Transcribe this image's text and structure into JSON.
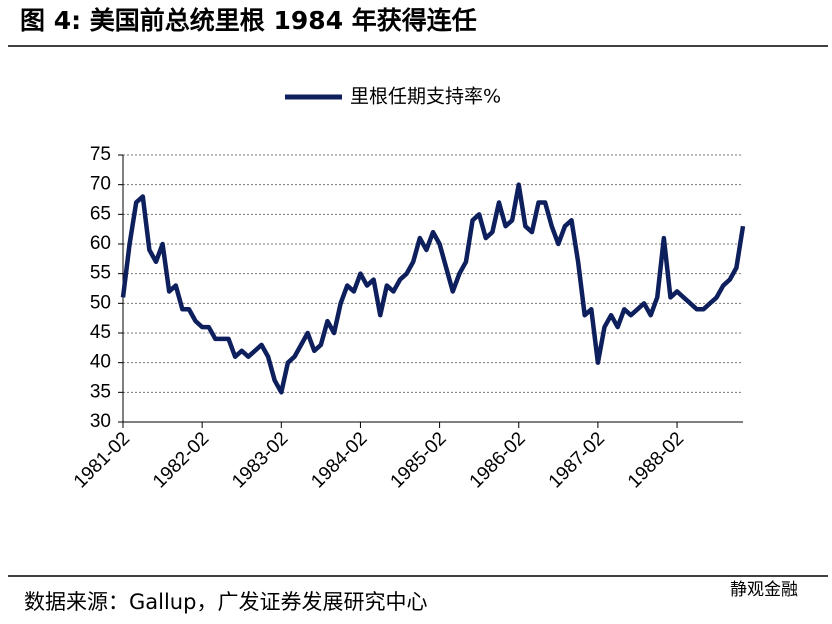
{
  "chart_data": {
    "type": "line",
    "title": "图 4:  美国前总统里根 1984 年获得连任",
    "source": "数据来源：Gallup，广发证券发展研究中心",
    "watermark": "静观金融",
    "x": [
      "1981-02",
      "1981-03",
      "1981-04",
      "1981-05",
      "1981-06",
      "1981-07",
      "1981-08",
      "1981-09",
      "1981-10",
      "1981-11",
      "1981-12",
      "1982-01",
      "1982-02",
      "1982-03",
      "1982-04",
      "1982-05",
      "1982-06",
      "1982-07",
      "1982-08",
      "1982-09",
      "1982-10",
      "1982-11",
      "1982-12",
      "1983-01",
      "1983-02",
      "1983-03",
      "1983-04",
      "1983-05",
      "1983-06",
      "1983-07",
      "1983-08",
      "1983-09",
      "1983-10",
      "1983-11",
      "1983-12",
      "1984-01",
      "1984-02",
      "1984-03",
      "1984-04",
      "1984-05",
      "1984-06",
      "1984-07",
      "1984-08",
      "1984-09",
      "1984-10",
      "1984-11",
      "1984-12",
      "1985-01",
      "1985-02",
      "1985-03",
      "1985-04",
      "1985-05",
      "1985-06",
      "1985-07",
      "1985-08",
      "1985-09",
      "1985-10",
      "1985-11",
      "1985-12",
      "1986-01",
      "1986-02",
      "1986-03",
      "1986-04",
      "1986-05",
      "1986-06",
      "1986-07",
      "1986-08",
      "1986-09",
      "1986-10",
      "1986-11",
      "1986-12",
      "1987-01",
      "1987-02",
      "1987-03",
      "1987-04",
      "1987-05",
      "1987-06",
      "1987-07",
      "1987-08",
      "1987-09",
      "1987-10",
      "1987-11",
      "1987-12",
      "1988-01",
      "1988-02",
      "1988-03",
      "1988-04",
      "1988-05",
      "1988-06",
      "1988-07",
      "1988-08",
      "1988-09",
      "1988-10",
      "1988-11",
      "1988-12"
    ],
    "series": [
      {
        "name": "里根任期支持率%",
        "color": "#0d1f5c",
        "values": [
          51,
          60,
          67,
          68,
          59,
          57,
          60,
          52,
          53,
          49,
          49,
          47,
          46,
          46,
          44,
          44,
          44,
          41,
          42,
          41,
          42,
          43,
          41,
          37,
          35,
          40,
          41,
          43,
          45,
          42,
          43,
          47,
          45,
          50,
          53,
          52,
          55,
          53,
          54,
          48,
          53,
          52,
          54,
          55,
          57,
          61,
          59,
          62,
          60,
          56,
          52,
          55,
          57,
          64,
          65,
          61,
          62,
          67,
          63,
          64,
          70,
          63,
          62,
          67,
          67,
          63,
          60,
          63,
          64,
          57,
          48,
          49,
          40,
          46,
          48,
          46,
          49,
          48,
          49,
          50,
          48,
          51,
          61,
          51,
          52,
          51,
          50,
          49,
          49,
          50,
          51,
          53,
          54,
          56,
          63
        ]
      }
    ],
    "xlim": [
      "1981-02",
      "1988-12"
    ],
    "xticks": [
      "1981-02",
      "1982-02",
      "1983-02",
      "1984-02",
      "1985-02",
      "1986-02",
      "1987-02",
      "1988-02"
    ],
    "ylim": [
      30,
      75
    ],
    "yticks": [
      30,
      35,
      40,
      45,
      50,
      55,
      60,
      65,
      70,
      75
    ],
    "grid": true
  }
}
